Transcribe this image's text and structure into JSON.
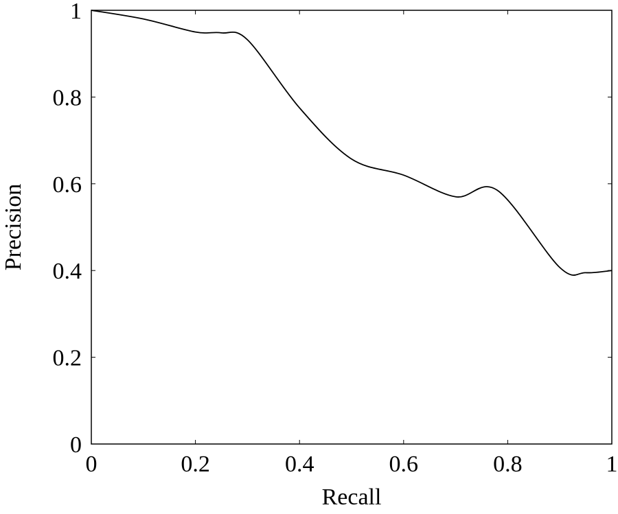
{
  "chart_data": {
    "type": "line",
    "x_label": "Recall",
    "y_label": "Precision",
    "x": [
      0,
      0.1,
      0.2,
      0.25,
      0.3,
      0.4,
      0.5,
      0.6,
      0.7,
      0.78,
      0.9,
      0.95,
      1
    ],
    "series": [
      {
        "color": "#000000",
        "values": [
          1.0,
          0.98,
          0.95,
          0.948,
          0.932,
          0.775,
          0.657,
          0.62,
          0.57,
          0.585,
          0.407,
          0.395,
          0.4
        ]
      }
    ],
    "xlim": [
      0,
      1
    ],
    "ylim": [
      0,
      1
    ],
    "xticks": [
      0,
      0.2,
      0.4,
      0.6,
      0.8,
      1
    ],
    "yticks": [
      0,
      0.2,
      0.4,
      0.6,
      0.8,
      1
    ]
  }
}
